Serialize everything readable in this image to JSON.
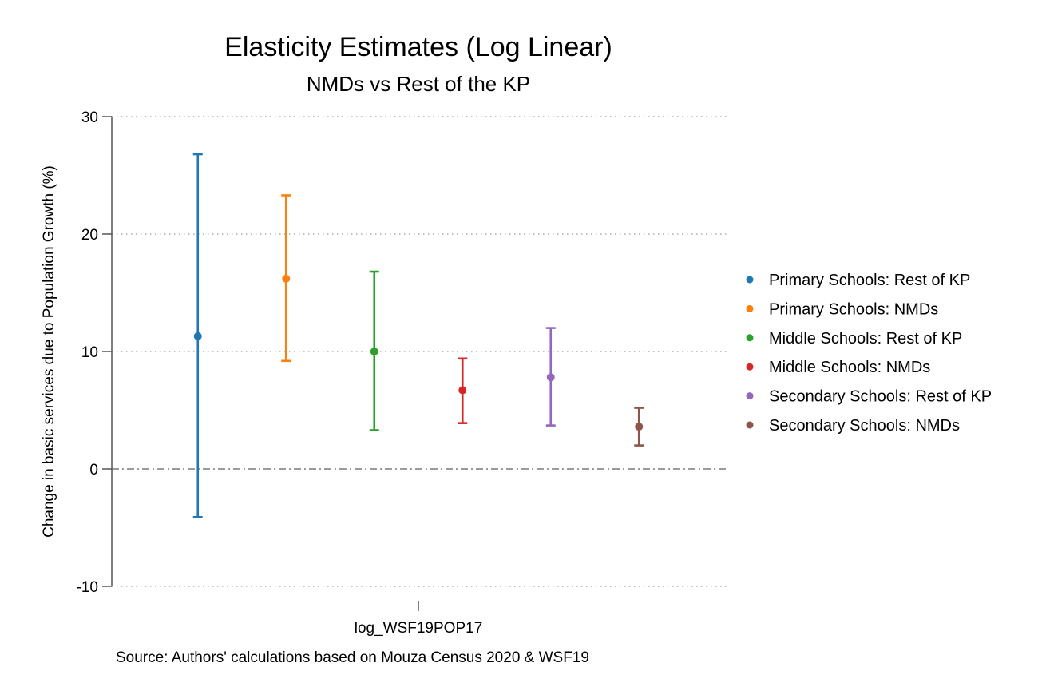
{
  "chart_data": {
    "type": "scatter",
    "title": "Elasticity Estimates (Log Linear)",
    "subtitle": "NMDs vs Rest of the KP",
    "ylabel": "Change in basic services due to Population Growth (%)",
    "xlabel": "log_WSF19POP17",
    "ylim": [
      -10,
      30
    ],
    "yticks": [
      -10,
      0,
      10,
      20,
      30
    ],
    "grid": true,
    "reference_line": 0,
    "legend_position": "right",
    "note": "Source: Authors' calculations based on Mouza Census 2020 & WSF19",
    "series": [
      {
        "name": "Primary Schools: Rest of KP",
        "estimate": 11.3,
        "ci_low": -4.1,
        "ci_high": 26.8,
        "color": "#1f77b4"
      },
      {
        "name": "Primary Schools: NMDs",
        "estimate": 16.2,
        "ci_low": 9.2,
        "ci_high": 23.3,
        "color": "#ff7f0e"
      },
      {
        "name": "Middle Schools: Rest of KP",
        "estimate": 10.0,
        "ci_low": 3.3,
        "ci_high": 16.8,
        "color": "#2ca02c"
      },
      {
        "name": "Middle Schools: NMDs",
        "estimate": 6.7,
        "ci_low": 3.9,
        "ci_high": 9.4,
        "color": "#d62728"
      },
      {
        "name": "Secondary Schools: Rest of KP",
        "estimate": 7.8,
        "ci_low": 3.7,
        "ci_high": 12.0,
        "color": "#9467bd"
      },
      {
        "name": "Secondary Schools: NMDs",
        "estimate": 3.6,
        "ci_low": 2.0,
        "ci_high": 5.2,
        "color": "#8c564b"
      }
    ]
  }
}
